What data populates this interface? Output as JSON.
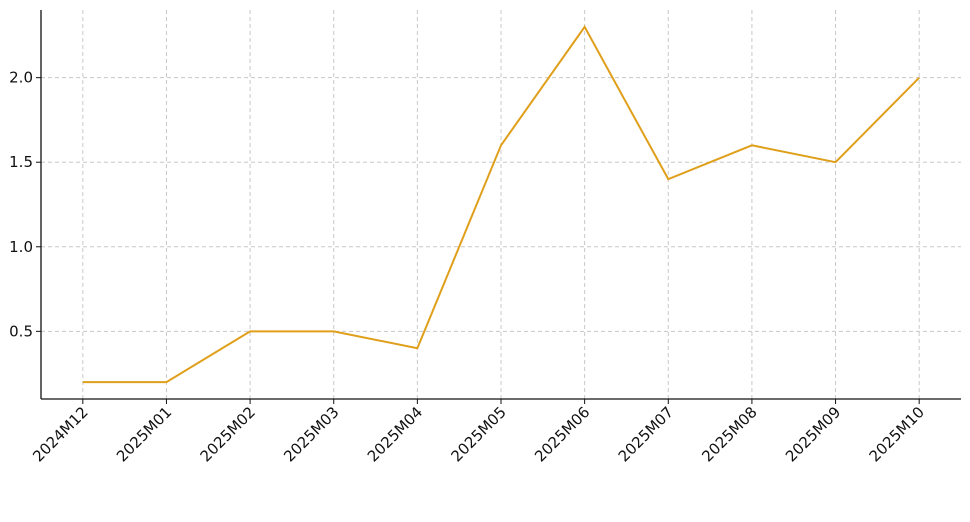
{
  "chart_data": {
    "type": "line",
    "title": "",
    "xlabel": "",
    "ylabel": "",
    "categories": [
      "2024M12",
      "2025M01",
      "2025M02",
      "2025M03",
      "2025M04",
      "2025M05",
      "2025M06",
      "2025M07",
      "2025M08",
      "2025M09",
      "2025M10"
    ],
    "series": [
      {
        "values": [
          0.2,
          0.2,
          0.5,
          0.5,
          0.4,
          1.6,
          2.3,
          1.4,
          1.6,
          1.5,
          2.0
        ],
        "color": "#E09F1A"
      }
    ],
    "ylim": [
      0.1,
      2.4
    ],
    "yticks": [
      0.5,
      1.0,
      1.5,
      2.0
    ],
    "ytick_labels": [
      "0.5",
      "1.0",
      "1.5",
      "2.0"
    ],
    "grid": true,
    "legend": "none"
  }
}
